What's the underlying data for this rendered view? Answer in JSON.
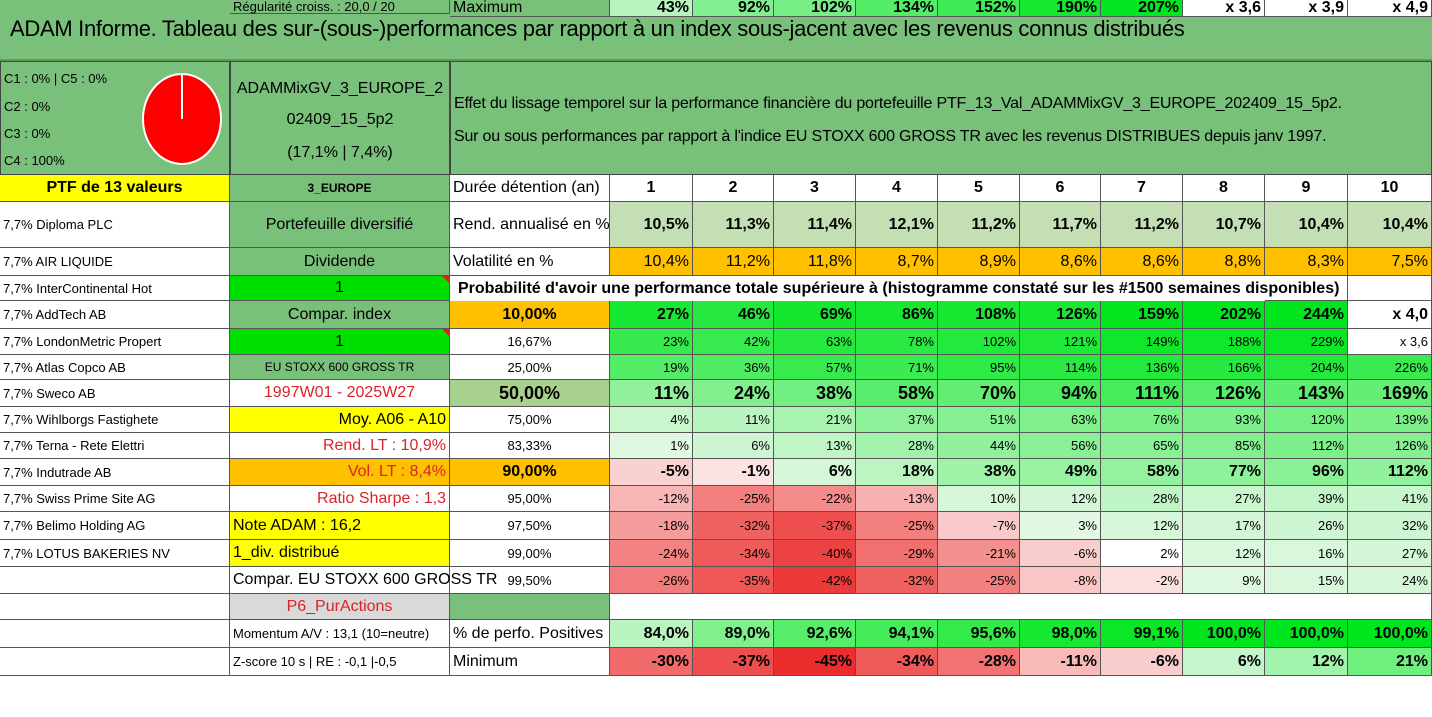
{
  "title": "ADAM Informe. Tableau des sur-(sous-)performances par rapport à un index sous-jacent avec les revenus connus distribués",
  "pie": {
    "labels": [
      "C1 : 0% | C5 : 0%",
      "C2 : 0%",
      "C3 : 0%",
      "C4 : 100%"
    ],
    "fill_color": "#ff0000"
  },
  "fund": {
    "name_line1": "ADAMMixGV_3_EUROPE_2",
    "name_line2": "02409_15_5p2",
    "stats": "(17,1% | 7,4%)"
  },
  "description": {
    "line1": "Effet du lissage temporel sur la performance financière du portefeuille PTF_13_Val_ADAMMixGV_3_EUROPE_202409_15_5p2.",
    "line2": "Sur ou sous performances par rapport à l'indice EU STOXX 600 GROSS TR avec les revenus DISTRIBUES depuis janv 1997."
  },
  "header": {
    "portfolio": "PTF de 13 valeurs",
    "region": "3_EUROPE",
    "duration_label": "Durée détention (an)",
    "years": [
      "1",
      "2",
      "3",
      "4",
      "5",
      "6",
      "7",
      "8",
      "9",
      "10"
    ]
  },
  "holdings": [
    "7,7% Diploma PLC",
    "7,7% AIR LIQUIDE",
    "7,7% InterContinental Hot",
    "7,7% AddTech AB",
    "7,7% LondonMetric Propert",
    "7,7% Atlas Copco AB",
    "7,7% Sweco AB",
    "7,7% Wihlborgs Fastighete",
    "7,7% Terna - Rete Elettri",
    "7,7% Indutrade AB",
    "7,7% Swiss Prime Site AG",
    "7,7% Belimo Holding AG",
    "7,7% LOTUS BAKERIES NV"
  ],
  "info": {
    "diversified": "Portefeuille diversifié",
    "dividend": "Dividende",
    "flag1": "1",
    "compar_index": "Compar. index",
    "flag2": "1",
    "index_name": "EU STOXX 600 GROSS TR",
    "period": "1997W01 - 2025W27",
    "moy": "Moy. A06 - A10",
    "rend_lt": "Rend. LT : 10,9%",
    "vol_lt": "Vol. LT : 8,4%",
    "sharpe": "Ratio Sharpe : 1,3",
    "note": "Note ADAM : 16,2",
    "div": "1_div. distribué",
    "compar_full": "Compar. EU STOXX 600 GROSS TR",
    "p6": "P6_PurActions",
    "momentum": "Momentum A/V : 13,1 (10=neutre)",
    "zscore": "Z-score 10 s | RE : -0,1 |-0,5",
    "regularite": "Régularité croiss. : 20,0 / 20"
  },
  "metrics": {
    "rend_label": "Rend. annualisé en %",
    "rend_values": [
      "10,5%",
      "11,3%",
      "11,4%",
      "12,1%",
      "11,2%",
      "11,7%",
      "11,2%",
      "10,7%",
      "10,4%",
      "10,4%"
    ],
    "vol_label": "Volatilité en %",
    "vol_values": [
      "10,4%",
      "11,2%",
      "11,8%",
      "8,7%",
      "8,9%",
      "8,6%",
      "8,6%",
      "8,8%",
      "8,3%",
      "7,5%"
    ],
    "proba_title": "Probabilité d'avoir une performance totale supérieure à (histogramme constaté sur les #1500 semaines disponibles)"
  },
  "probabilities": [
    {
      "p": "10,00%",
      "values": [
        "27%",
        "46%",
        "69%",
        "86%",
        "108%",
        "126%",
        "159%",
        "202%",
        "244%",
        "x 4,0"
      ]
    },
    {
      "p": "16,67%",
      "values": [
        "23%",
        "42%",
        "63%",
        "78%",
        "102%",
        "121%",
        "149%",
        "188%",
        "229%",
        "x 3,6"
      ]
    },
    {
      "p": "25,00%",
      "values": [
        "19%",
        "36%",
        "57%",
        "71%",
        "95%",
        "114%",
        "136%",
        "166%",
        "204%",
        "226%"
      ]
    },
    {
      "p": "50,00%",
      "values": [
        "11%",
        "24%",
        "38%",
        "58%",
        "70%",
        "94%",
        "111%",
        "126%",
        "143%",
        "169%"
      ]
    },
    {
      "p": "75,00%",
      "values": [
        "4%",
        "11%",
        "21%",
        "37%",
        "51%",
        "63%",
        "76%",
        "93%",
        "120%",
        "139%"
      ]
    },
    {
      "p": "83,33%",
      "values": [
        "1%",
        "6%",
        "13%",
        "28%",
        "44%",
        "56%",
        "65%",
        "85%",
        "112%",
        "126%"
      ]
    },
    {
      "p": "90,00%",
      "values": [
        "-5%",
        "-1%",
        "6%",
        "18%",
        "38%",
        "49%",
        "58%",
        "77%",
        "96%",
        "112%"
      ]
    },
    {
      "p": "95,00%",
      "values": [
        "-12%",
        "-25%",
        "-22%",
        "-13%",
        "10%",
        "12%",
        "28%",
        "27%",
        "39%",
        "41%"
      ]
    },
    {
      "p": "97,50%",
      "values": [
        "-18%",
        "-32%",
        "-37%",
        "-25%",
        "-7%",
        "3%",
        "12%",
        "17%",
        "26%",
        "32%"
      ]
    },
    {
      "p": "99,00%",
      "values": [
        "-24%",
        "-34%",
        "-40%",
        "-29%",
        "-21%",
        "-6%",
        "2%",
        "12%",
        "16%",
        "27%"
      ]
    },
    {
      "p": "99,50%",
      "values": [
        "-26%",
        "-35%",
        "-42%",
        "-32%",
        "-25%",
        "-8%",
        "-2%",
        "9%",
        "15%",
        "24%"
      ]
    }
  ],
  "summary": {
    "positives_label": "% de perfo. Positives",
    "positives": [
      "84,0%",
      "89,0%",
      "92,6%",
      "94,1%",
      "95,6%",
      "98,0%",
      "99,1%",
      "100,0%",
      "100,0%",
      "100,0%"
    ],
    "min_label": "Minimum",
    "min": [
      "-30%",
      "-37%",
      "-45%",
      "-34%",
      "-28%",
      "-11%",
      "-6%",
      "6%",
      "12%",
      "21%"
    ],
    "max_label": "Maximum",
    "max": [
      "43%",
      "92%",
      "102%",
      "134%",
      "152%",
      "190%",
      "207%",
      "x 3,6",
      "x 3,9",
      "x 4,9"
    ]
  },
  "colors": {
    "title_green": "#79c07a",
    "label_green": "#79c07a",
    "yellow": "#ffff00",
    "bright_green": "#00e000",
    "orange": "#ffc000",
    "rend_bg": "#c4dfb3",
    "median_bg": "#a9d18e",
    "red_text": "#d9232a"
  }
}
